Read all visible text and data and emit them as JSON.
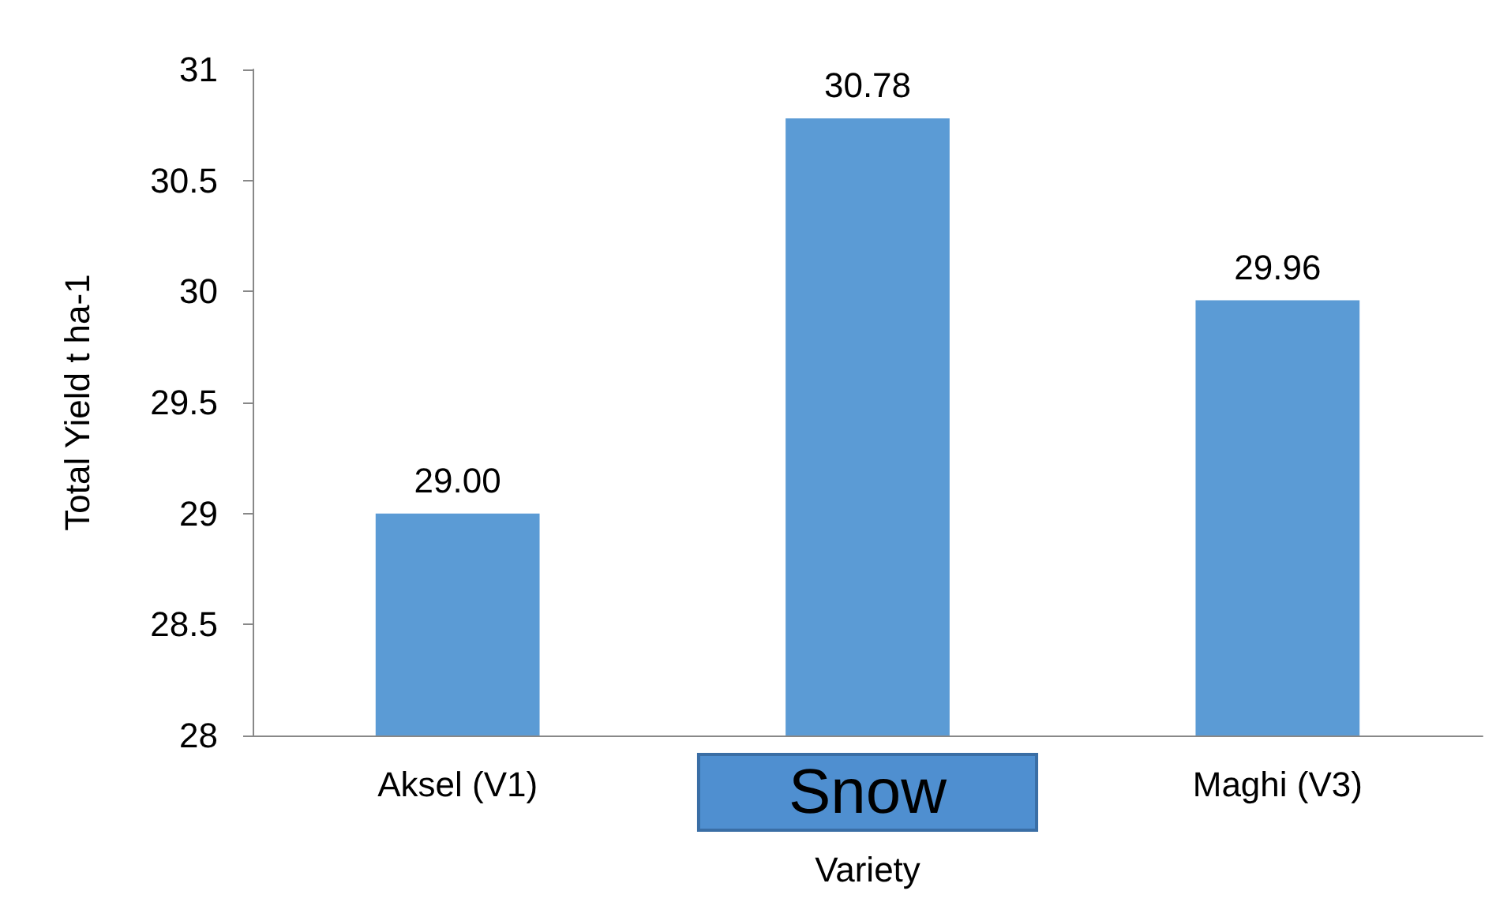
{
  "chart_data": {
    "type": "bar",
    "xlabel": "Variety",
    "ylabel": "Total Yield t ha-1",
    "categories": [
      "Aksel (V1)",
      null,
      "Maghi (V3)"
    ],
    "values": [
      29.0,
      30.78,
      29.96
    ],
    "value_labels": [
      "29.00",
      "30.78",
      "29.96"
    ],
    "color": "#5b9bd5",
    "ylim": [
      28,
      31
    ],
    "yticks": [
      28,
      28.5,
      29,
      29.5,
      30,
      30.5,
      31
    ],
    "annotations": [
      "Snow"
    ]
  }
}
